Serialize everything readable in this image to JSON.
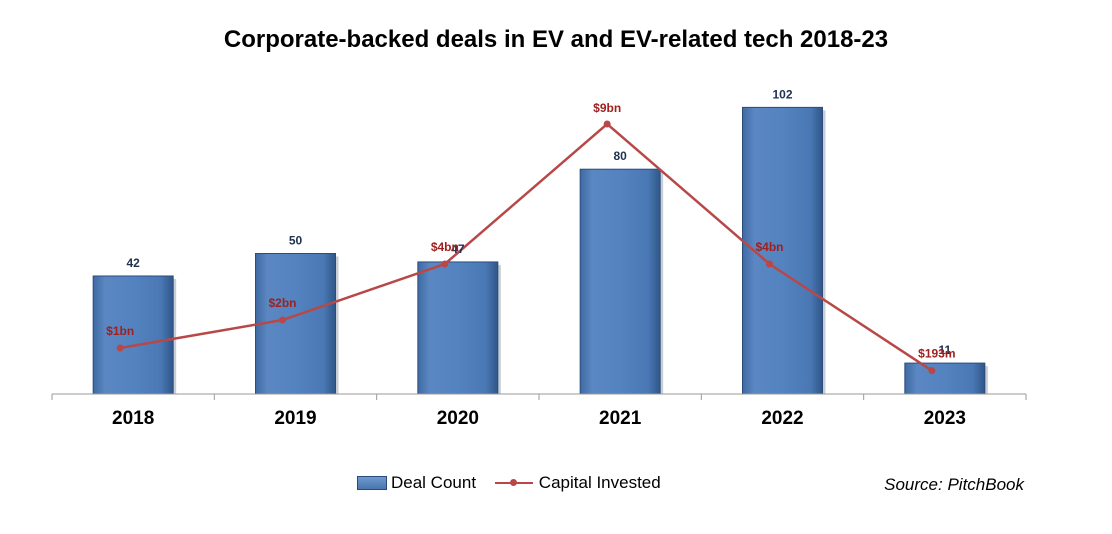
{
  "chart_data": {
    "type": "bar",
    "title": "Corporate-backed deals in EV and EV-related tech 2018-23",
    "categories": [
      "2018",
      "2019",
      "2020",
      "2021",
      "2022",
      "2023"
    ],
    "series": [
      {
        "name": "Deal Count",
        "type": "bar",
        "values": [
          42,
          50,
          47,
          80,
          102,
          11
        ],
        "labels": [
          "42",
          "50",
          "47",
          "80",
          "102",
          "11"
        ],
        "color": "#4f7cb8"
      },
      {
        "name": "Capital Invested",
        "type": "line",
        "values": [
          1,
          2,
          4,
          9,
          4,
          0.193
        ],
        "unit": "billion USD",
        "labels": [
          "$1bn",
          "$2bn",
          "$4bn",
          "$9bn",
          "$4bn",
          "$193m"
        ],
        "color": "#b84848"
      }
    ],
    "grid": false,
    "legend": "bottom-center"
  },
  "legend": {
    "bar_label": "Deal Count",
    "line_label": "Capital Invested"
  },
  "source": "Source: PitchBook"
}
